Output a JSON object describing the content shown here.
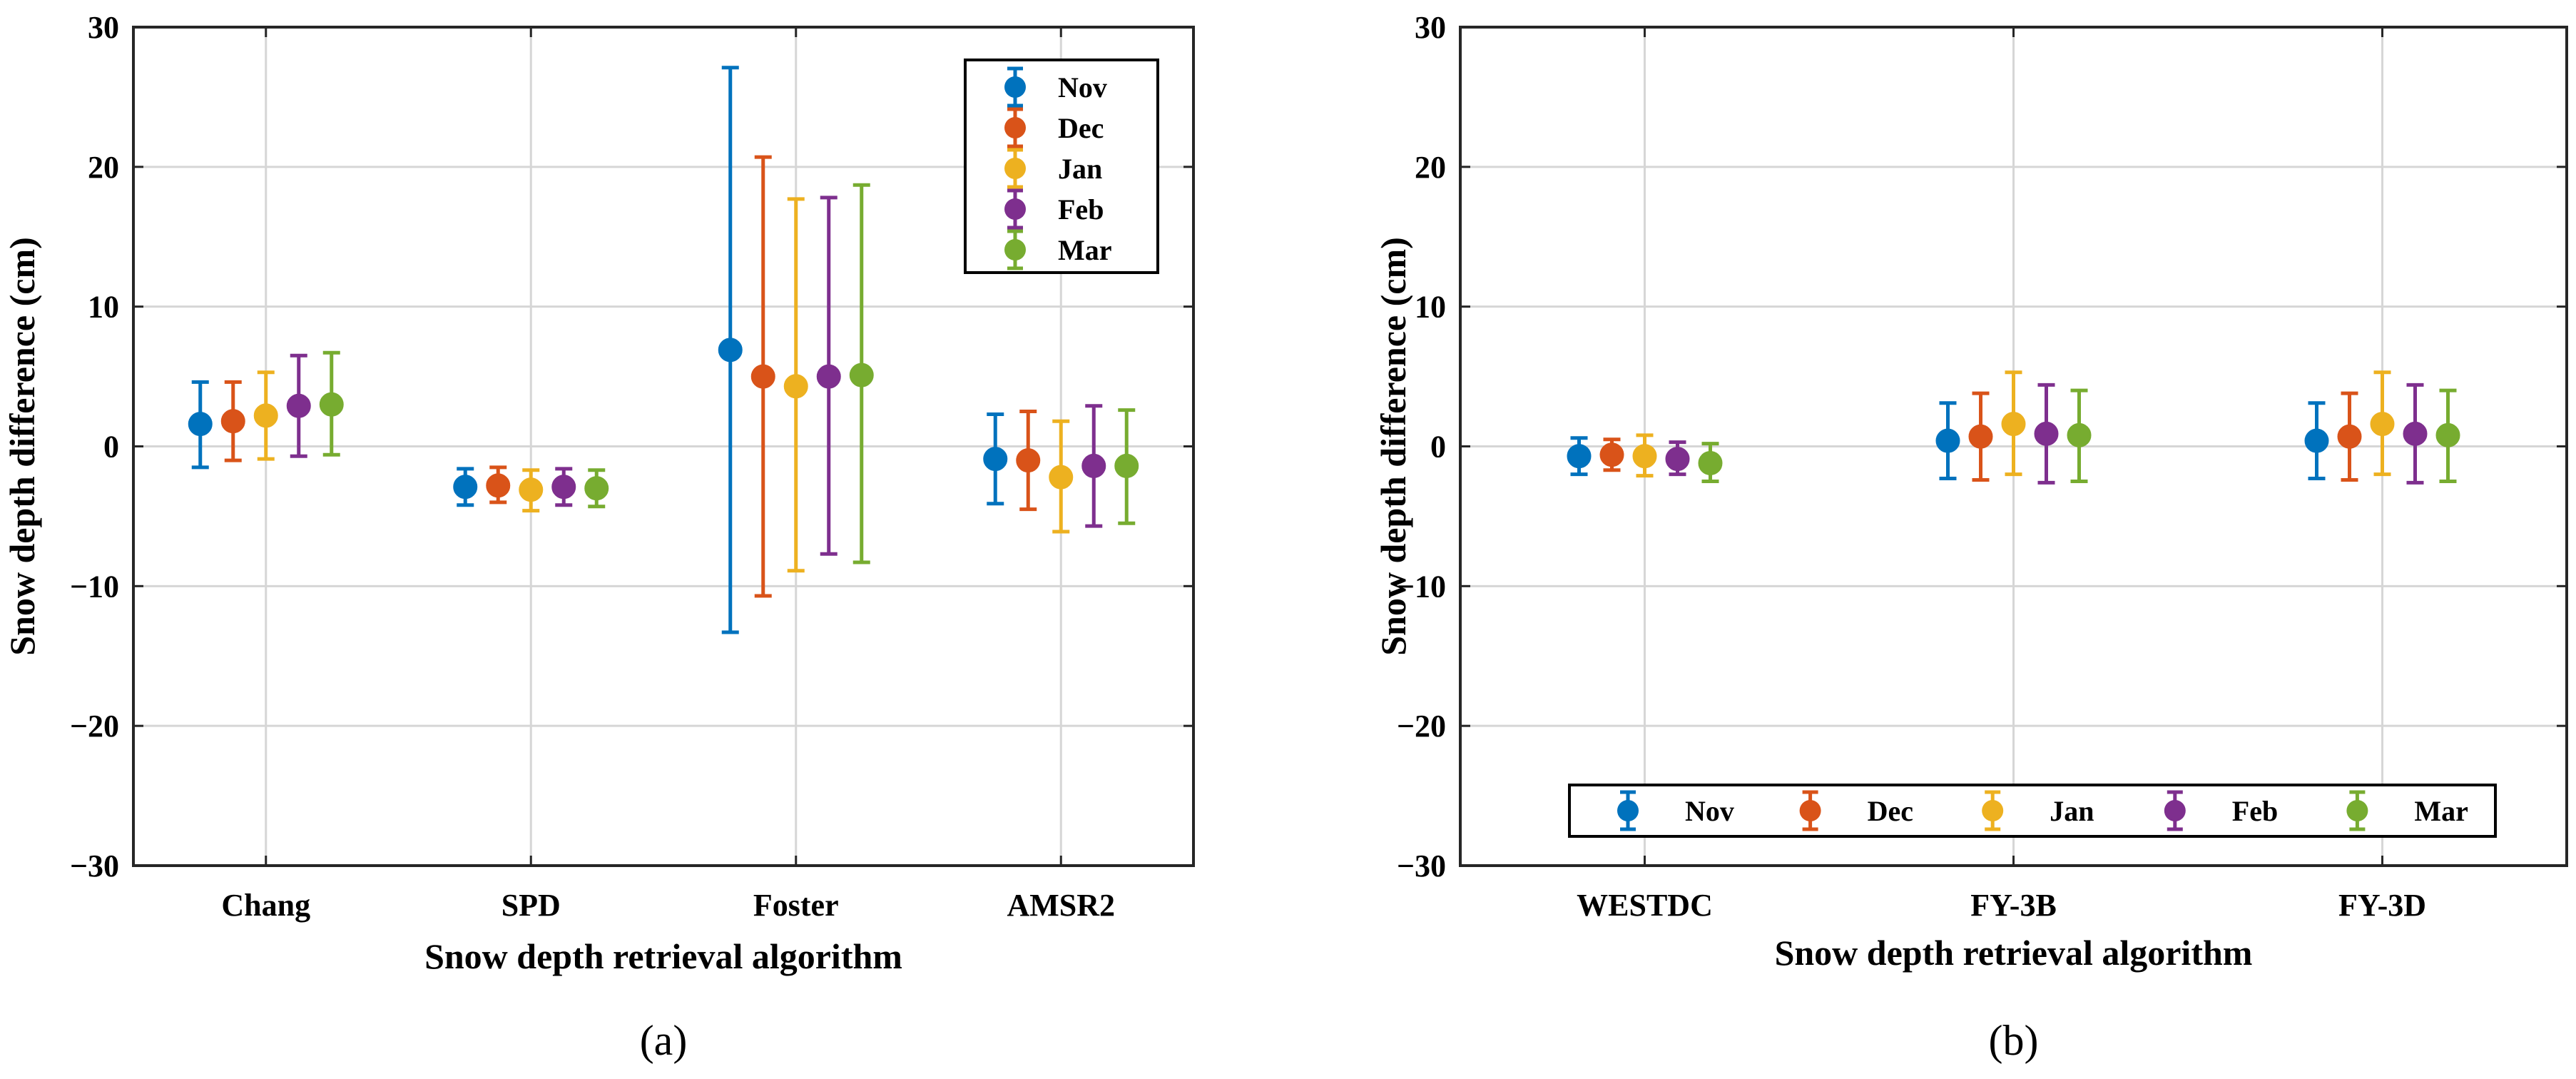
{
  "chart_data": [
    {
      "type": "errorbar",
      "panel_label": "(a)",
      "xlabel": "Snow depth retrieval algorithm",
      "ylabel": "Snow depth difference (cm)",
      "ylim": [
        -30,
        30
      ],
      "yticks": [
        30,
        20,
        10,
        0,
        -10,
        -20,
        -30
      ],
      "ytick_labels": [
        "30",
        "20",
        "10",
        "0",
        "−10",
        "−20",
        "−30"
      ],
      "grid": true,
      "legend": {
        "position": "top-right",
        "orientation": "vertical"
      },
      "categories": [
        "Chang",
        "SPD",
        "Foster",
        "AMSR2"
      ],
      "series": [
        {
          "name": "Nov",
          "color": "#0072BD",
          "mean": [
            1.6,
            -2.9,
            6.9,
            -0.9
          ],
          "lower": [
            -1.5,
            -4.2,
            -13.3,
            -4.1
          ],
          "upper": [
            4.6,
            -1.6,
            27.1,
            2.3
          ]
        },
        {
          "name": "Dec",
          "color": "#D95319",
          "mean": [
            1.8,
            -2.8,
            5.0,
            -1.0
          ],
          "lower": [
            -1.0,
            -4.0,
            -10.7,
            -4.5
          ],
          "upper": [
            4.6,
            -1.5,
            20.7,
            2.5
          ]
        },
        {
          "name": "Jan",
          "color": "#EDB120",
          "mean": [
            2.2,
            -3.1,
            4.3,
            -2.2
          ],
          "lower": [
            -0.9,
            -4.6,
            -8.9,
            -6.1
          ],
          "upper": [
            5.3,
            -1.7,
            17.7,
            1.8
          ]
        },
        {
          "name": "Feb",
          "color": "#7E2F8E",
          "mean": [
            2.9,
            -2.9,
            5.0,
            -1.4
          ],
          "lower": [
            -0.7,
            -4.2,
            -7.7,
            -5.7
          ],
          "upper": [
            6.5,
            -1.6,
            17.8,
            2.9
          ]
        },
        {
          "name": "Mar",
          "color": "#77AC30",
          "mean": [
            3.0,
            -3.0,
            5.1,
            -1.4
          ],
          "lower": [
            -0.6,
            -4.3,
            -8.3,
            -5.5
          ],
          "upper": [
            6.7,
            -1.7,
            18.7,
            2.6
          ]
        }
      ]
    },
    {
      "type": "errorbar",
      "panel_label": "(b)",
      "xlabel": "Snow depth retrieval algorithm",
      "ylabel": "Snow depth difference (cm)",
      "ylim": [
        -30,
        30
      ],
      "yticks": [
        30,
        20,
        10,
        0,
        -10,
        -20,
        -30
      ],
      "ytick_labels": [
        "30",
        "20",
        "10",
        "0",
        "−10",
        "−20",
        "−30"
      ],
      "grid": true,
      "legend": {
        "position": "bottom",
        "orientation": "horizontal"
      },
      "categories": [
        "WESTDC",
        "FY-3B",
        "FY-3D"
      ],
      "series": [
        {
          "name": "Nov",
          "color": "#0072BD",
          "mean": [
            -0.7,
            0.4,
            0.4
          ],
          "lower": [
            -2.0,
            -2.3,
            -2.3
          ],
          "upper": [
            0.6,
            3.1,
            3.1
          ]
        },
        {
          "name": "Dec",
          "color": "#D95319",
          "mean": [
            -0.6,
            0.7,
            0.7
          ],
          "lower": [
            -1.7,
            -2.4,
            -2.4
          ],
          "upper": [
            0.5,
            3.8,
            3.8
          ]
        },
        {
          "name": "Jan",
          "color": "#EDB120",
          "mean": [
            -0.7,
            1.6,
            1.6
          ],
          "lower": [
            -2.1,
            -2.0,
            -2.0
          ],
          "upper": [
            0.8,
            5.3,
            5.3
          ]
        },
        {
          "name": "Feb",
          "color": "#7E2F8E",
          "mean": [
            -0.9,
            0.9,
            0.9
          ],
          "lower": [
            -2.0,
            -2.6,
            -2.6
          ],
          "upper": [
            0.3,
            4.4,
            4.4
          ]
        },
        {
          "name": "Mar",
          "color": "#77AC30",
          "mean": [
            -1.2,
            0.8,
            0.8
          ],
          "lower": [
            -2.5,
            -2.5,
            -2.5
          ],
          "upper": [
            0.2,
            4.0,
            4.0
          ]
        }
      ]
    }
  ]
}
